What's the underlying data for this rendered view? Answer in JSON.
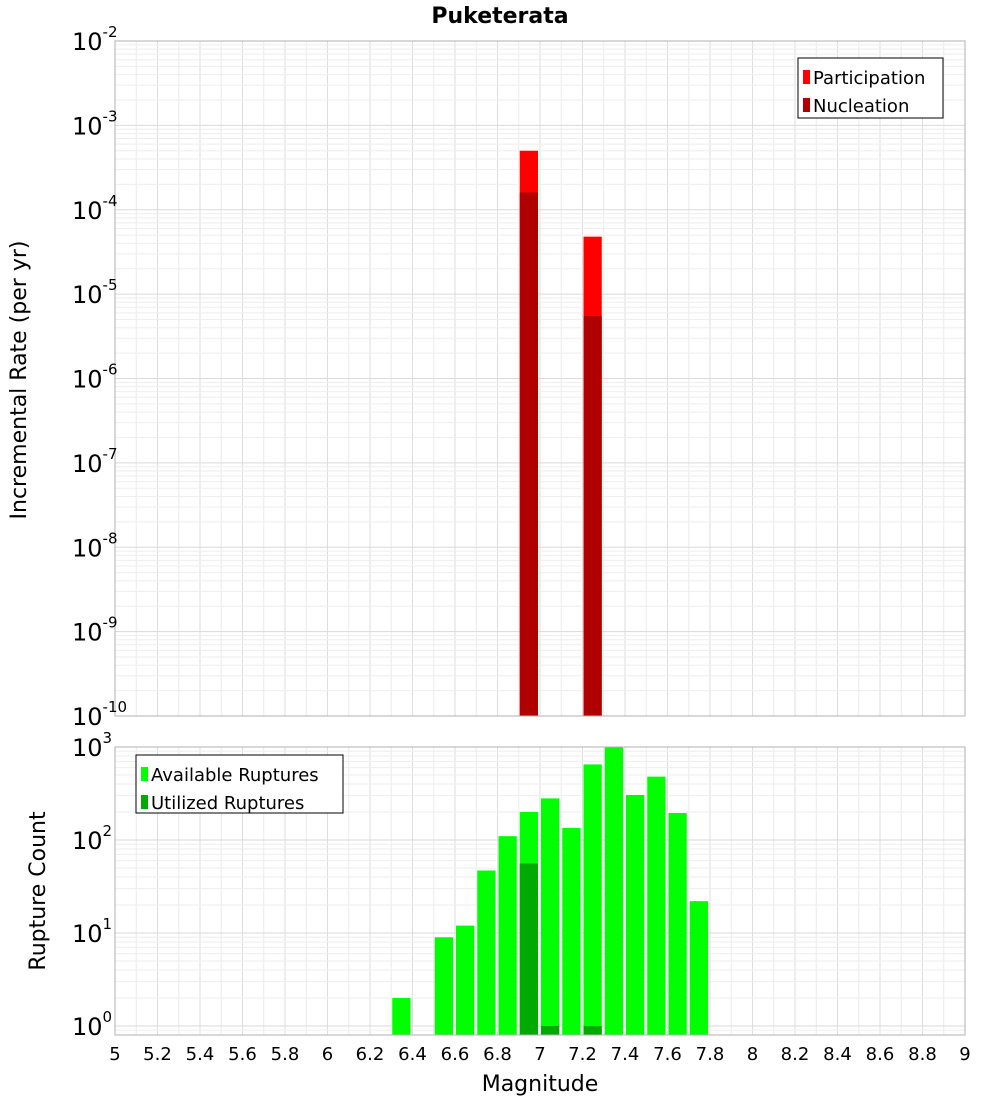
{
  "chart_data": [
    {
      "type": "bar",
      "title": "Puketerata",
      "xlabel": "",
      "ylabel": "Incremental Rate (per yr)",
      "yscale": "log",
      "xlim": [
        5,
        9
      ],
      "ylim": [
        1e-10,
        0.01
      ],
      "y_ticks": [
        {
          "base": "10",
          "exp": "-10"
        },
        {
          "base": "10",
          "exp": "-9"
        },
        {
          "base": "10",
          "exp": "-8"
        },
        {
          "base": "10",
          "exp": "-7"
        },
        {
          "base": "10",
          "exp": "-6"
        },
        {
          "base": "10",
          "exp": "-5"
        },
        {
          "base": "10",
          "exp": "-4"
        },
        {
          "base": "10",
          "exp": "-3"
        },
        {
          "base": "10",
          "exp": "-2"
        }
      ],
      "grid": true,
      "legend_position": "top-right",
      "bin_width": 0.1,
      "series": [
        {
          "name": "Participation",
          "color": "#ff0000",
          "x": [
            6.95,
            7.25
          ],
          "values": [
            0.0005,
            4.8e-05
          ]
        },
        {
          "name": "Nucleation",
          "color": "#b00000",
          "x": [
            6.95,
            7.25
          ],
          "values": [
            0.00016,
            5.5e-06
          ]
        }
      ]
    },
    {
      "type": "bar",
      "title": "",
      "xlabel": "Magnitude",
      "ylabel": "Rupture Count",
      "yscale": "log",
      "xlim": [
        5,
        9
      ],
      "ylim": [
        0.8,
        1000
      ],
      "x_ticks": [
        "5",
        "5.2",
        "5.4",
        "5.6",
        "5.8",
        "6",
        "6.2",
        "6.4",
        "6.6",
        "6.8",
        "7",
        "7.2",
        "7.4",
        "7.6",
        "7.8",
        "8",
        "8.2",
        "8.4",
        "8.6",
        "8.8",
        "9"
      ],
      "y_ticks": [
        {
          "base": "10",
          "exp": "0"
        },
        {
          "base": "10",
          "exp": "1"
        },
        {
          "base": "10",
          "exp": "2"
        },
        {
          "base": "10",
          "exp": "3"
        }
      ],
      "grid": true,
      "legend_position": "top-left",
      "bin_width": 0.1,
      "series": [
        {
          "name": "Available Ruptures",
          "color": "#00ff00",
          "x": [
            6.35,
            6.55,
            6.65,
            6.75,
            6.85,
            6.95,
            7.05,
            7.15,
            7.25,
            7.35,
            7.45,
            7.55,
            7.65,
            7.75
          ],
          "values": [
            2,
            9,
            12,
            47,
            110,
            200,
            280,
            135,
            650,
            1000,
            305,
            480,
            195,
            22
          ]
        },
        {
          "name": "Utilized Ruptures",
          "color": "#00aa00",
          "x": [
            6.95,
            7.05,
            7.25
          ],
          "values": [
            56,
            1,
            1
          ]
        }
      ]
    }
  ]
}
